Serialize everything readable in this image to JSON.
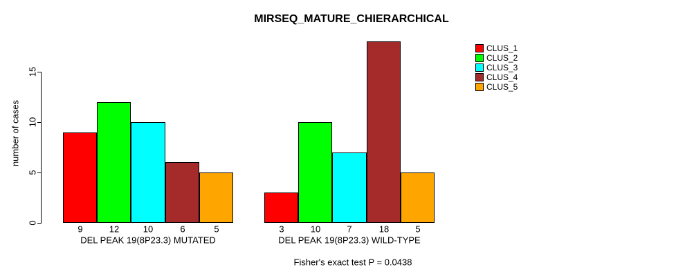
{
  "chart_data": {
    "type": "bar",
    "title": "MIRSEQ_MATURE_CHIERARCHICAL",
    "ylabel": "number of cases",
    "xlabel": "",
    "yticks": [
      0,
      5,
      10,
      15
    ],
    "ylim": [
      0,
      18.6
    ],
    "grid": false,
    "legend_position": "right",
    "footnote": "Fisher's exact test P = 0.0438",
    "groups": [
      {
        "label": "DEL PEAK 19(8P23.3) MUTATED",
        "values": [
          9,
          12,
          10,
          6,
          5
        ]
      },
      {
        "label": "DEL PEAK 19(8P23.3) WILD-TYPE",
        "values": [
          3,
          10,
          7,
          18,
          5
        ]
      }
    ],
    "series": [
      {
        "name": "CLUS_1",
        "color": "#FF0000",
        "values": [
          9,
          3
        ]
      },
      {
        "name": "CLUS_2",
        "color": "#00FF00",
        "values": [
          12,
          10
        ]
      },
      {
        "name": "CLUS_3",
        "color": "#00FFFF",
        "values": [
          10,
          7
        ]
      },
      {
        "name": "CLUS_4",
        "color": "#A52A2A",
        "values": [
          6,
          18
        ]
      },
      {
        "name": "CLUS_5",
        "color": "#FFA500",
        "values": [
          5,
          5
        ]
      }
    ],
    "legend": [
      {
        "label": "CLUS_1",
        "color": "#FF0000"
      },
      {
        "label": "CLUS_2",
        "color": "#00FF00"
      },
      {
        "label": "CLUS_3",
        "color": "#00FFFF"
      },
      {
        "label": "CLUS_4",
        "color": "#A52A2A"
      },
      {
        "label": "CLUS_5",
        "color": "#FFA500"
      }
    ]
  }
}
